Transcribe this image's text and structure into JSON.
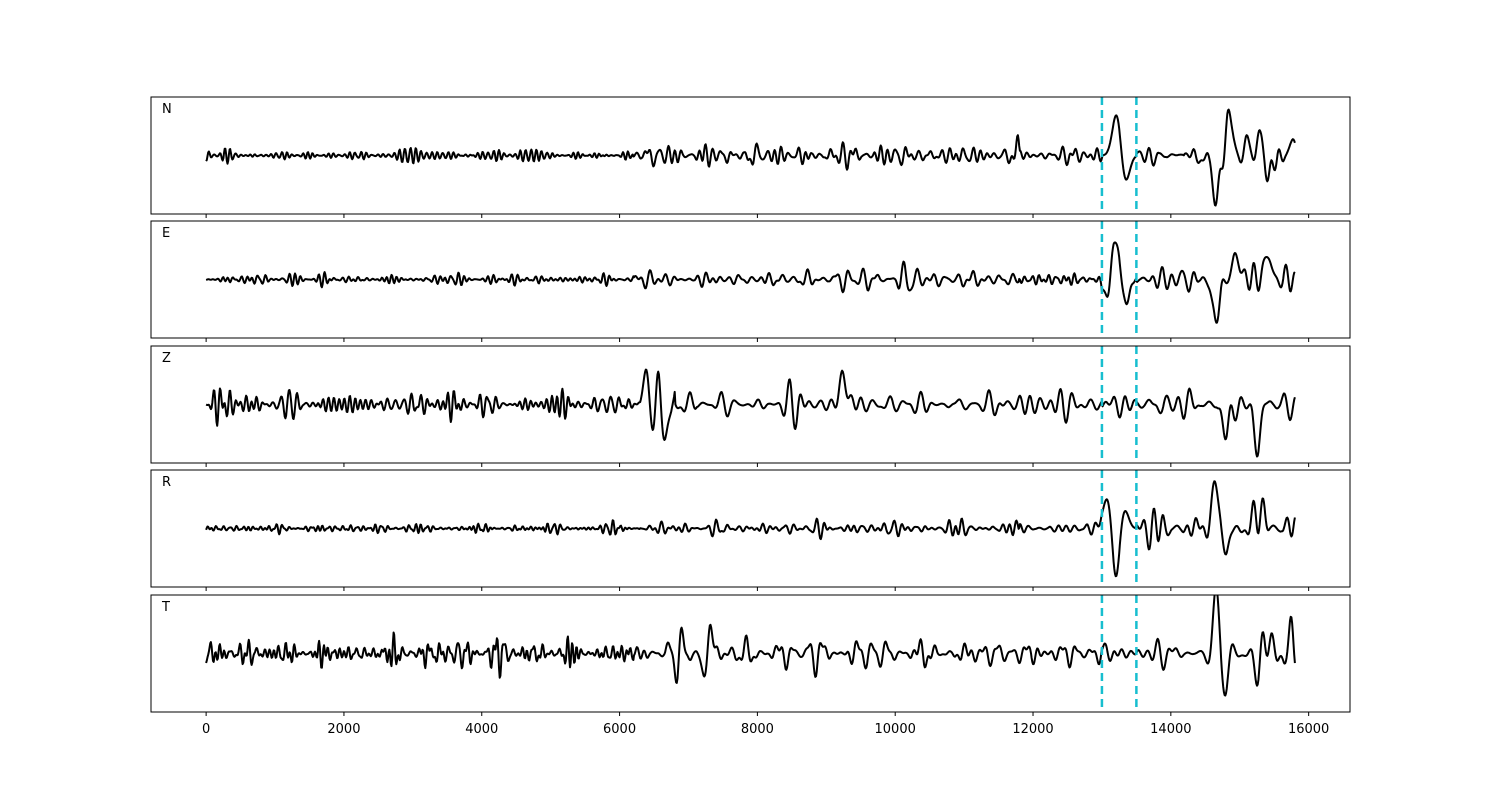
{
  "chart_data": {
    "type": "line",
    "xlim": [
      -800,
      16600
    ],
    "x_ticks": [
      0,
      2000,
      4000,
      6000,
      8000,
      10000,
      12000,
      14000,
      16000
    ],
    "x_tick_labels": [
      "0",
      "2000",
      "4000",
      "6000",
      "8000",
      "10000",
      "12000",
      "14000",
      "16000"
    ],
    "n_samples": 15800,
    "grid": false,
    "colors": {
      "trace": "#000000",
      "marker": "#17becf",
      "axes": "#000000"
    },
    "markers": {
      "style": "dashed",
      "x": [
        13000,
        13500
      ]
    },
    "panels": [
      {
        "label": "N",
        "ylim": [
          -2.8,
          2.8
        ],
        "wiggles": [
          {
            "x": [
              0,
              6200
            ],
            "amp": 0.35,
            "period": 90
          },
          {
            "x": [
              6200,
              11800
            ],
            "amp": 0.7,
            "period": 140
          },
          {
            "x": [
              11800,
              13000
            ],
            "amp": 0.6,
            "period": 120
          },
          {
            "x": [
              13500,
              14200
            ],
            "amp": 0.7,
            "period": 180
          },
          {
            "x": [
              14200,
              15800
            ],
            "amp": 1.1,
            "period": 200
          }
        ],
        "events": [
          {
            "x": 13220,
            "amp": 2.2,
            "width": 90
          },
          {
            "x": 13330,
            "amp": -1.5,
            "width": 90
          },
          {
            "x": 14650,
            "amp": -2.4,
            "width": 60
          },
          {
            "x": 14850,
            "amp": 1.6,
            "width": 80
          },
          {
            "x": 15300,
            "amp": 1.3,
            "width": 90
          },
          {
            "x": 15400,
            "amp": -1.4,
            "width": 80
          },
          {
            "x": 15780,
            "amp": 0.8,
            "width": 60
          }
        ]
      },
      {
        "label": "E",
        "ylim": [
          -2.8,
          2.8
        ],
        "wiggles": [
          {
            "x": [
              0,
              6200
            ],
            "amp": 0.35,
            "period": 90
          },
          {
            "x": [
              6200,
              11800
            ],
            "amp": 0.55,
            "period": 140
          },
          {
            "x": [
              11800,
              13000
            ],
            "amp": 0.45,
            "period": 120
          },
          {
            "x": [
              13000,
              13500
            ],
            "amp": 0.6,
            "period": 150
          },
          {
            "x": [
              13500,
              15800
            ],
            "amp": 1.1,
            "period": 200
          }
        ],
        "events": [
          {
            "x": 13200,
            "amp": 2.5,
            "width": 80
          },
          {
            "x": 13090,
            "amp": -1.2,
            "width": 70
          },
          {
            "x": 13320,
            "amp": -1.4,
            "width": 80
          },
          {
            "x": 14650,
            "amp": -2.0,
            "width": 70
          },
          {
            "x": 14950,
            "amp": 1.0,
            "width": 90
          },
          {
            "x": 15400,
            "amp": 1.1,
            "width": 80
          }
        ]
      },
      {
        "label": "Z",
        "ylim": [
          -2.8,
          2.8
        ],
        "wiggles": [
          {
            "x": [
              0,
              6300
            ],
            "amp": 0.7,
            "period": 110
          },
          {
            "x": [
              6300,
              6800
            ],
            "amp": 1.2,
            "period": 140
          },
          {
            "x": [
              6800,
              13000
            ],
            "amp": 0.9,
            "period": 170
          },
          {
            "x": [
              13000,
              15800
            ],
            "amp": 1.0,
            "period": 190
          }
        ],
        "events": [
          {
            "x": 6400,
            "amp": 1.8,
            "width": 60
          },
          {
            "x": 6500,
            "amp": -2.0,
            "width": 60
          },
          {
            "x": 6560,
            "amp": 2.5,
            "width": 50
          },
          {
            "x": 6650,
            "amp": -1.9,
            "width": 60
          },
          {
            "x": 9250,
            "amp": 1.4,
            "width": 70
          },
          {
            "x": 14800,
            "amp": -1.6,
            "width": 70
          },
          {
            "x": 15250,
            "amp": -2.2,
            "width": 60
          }
        ]
      },
      {
        "label": "R",
        "ylim": [
          -2.8,
          2.8
        ],
        "wiggles": [
          {
            "x": [
              0,
              6300
            ],
            "amp": 0.25,
            "period": 90
          },
          {
            "x": [
              6300,
              11800
            ],
            "amp": 0.4,
            "period": 140
          },
          {
            "x": [
              11800,
              13000
            ],
            "amp": 0.3,
            "period": 120
          },
          {
            "x": [
              13500,
              15800
            ],
            "amp": 0.9,
            "period": 190
          }
        ],
        "events": [
          {
            "x": 13080,
            "amp": 1.5,
            "width": 90
          },
          {
            "x": 13200,
            "amp": -2.6,
            "width": 70
          },
          {
            "x": 13330,
            "amp": 0.9,
            "width": 80
          },
          {
            "x": 14650,
            "amp": 2.1,
            "width": 70
          },
          {
            "x": 14800,
            "amp": -1.0,
            "width": 80
          },
          {
            "x": 15300,
            "amp": 1.1,
            "width": 80
          }
        ]
      },
      {
        "label": "T",
        "ylim": [
          -2.8,
          2.8
        ],
        "wiggles": [
          {
            "x": [
              0,
              6200
            ],
            "amp": 0.7,
            "period": 100
          },
          {
            "x": [
              6200,
              13000
            ],
            "amp": 0.9,
            "period": 160
          },
          {
            "x": [
              13000,
              13500
            ],
            "amp": 0.7,
            "period": 150
          },
          {
            "x": [
              13500,
              15800
            ],
            "amp": 1.1,
            "period": 190
          }
        ],
        "events": [
          {
            "x": 7300,
            "amp": 1.5,
            "width": 60
          },
          {
            "x": 7240,
            "amp": -1.4,
            "width": 60
          },
          {
            "x": 14660,
            "amp": 2.6,
            "width": 60
          },
          {
            "x": 14780,
            "amp": -1.3,
            "width": 70
          },
          {
            "x": 15270,
            "amp": -1.6,
            "width": 70
          },
          {
            "x": 15330,
            "amp": 1.7,
            "width": 60
          },
          {
            "x": 15760,
            "amp": 1.4,
            "width": 50
          },
          {
            "x": 15790,
            "amp": -1.1,
            "width": 40
          }
        ]
      }
    ]
  }
}
